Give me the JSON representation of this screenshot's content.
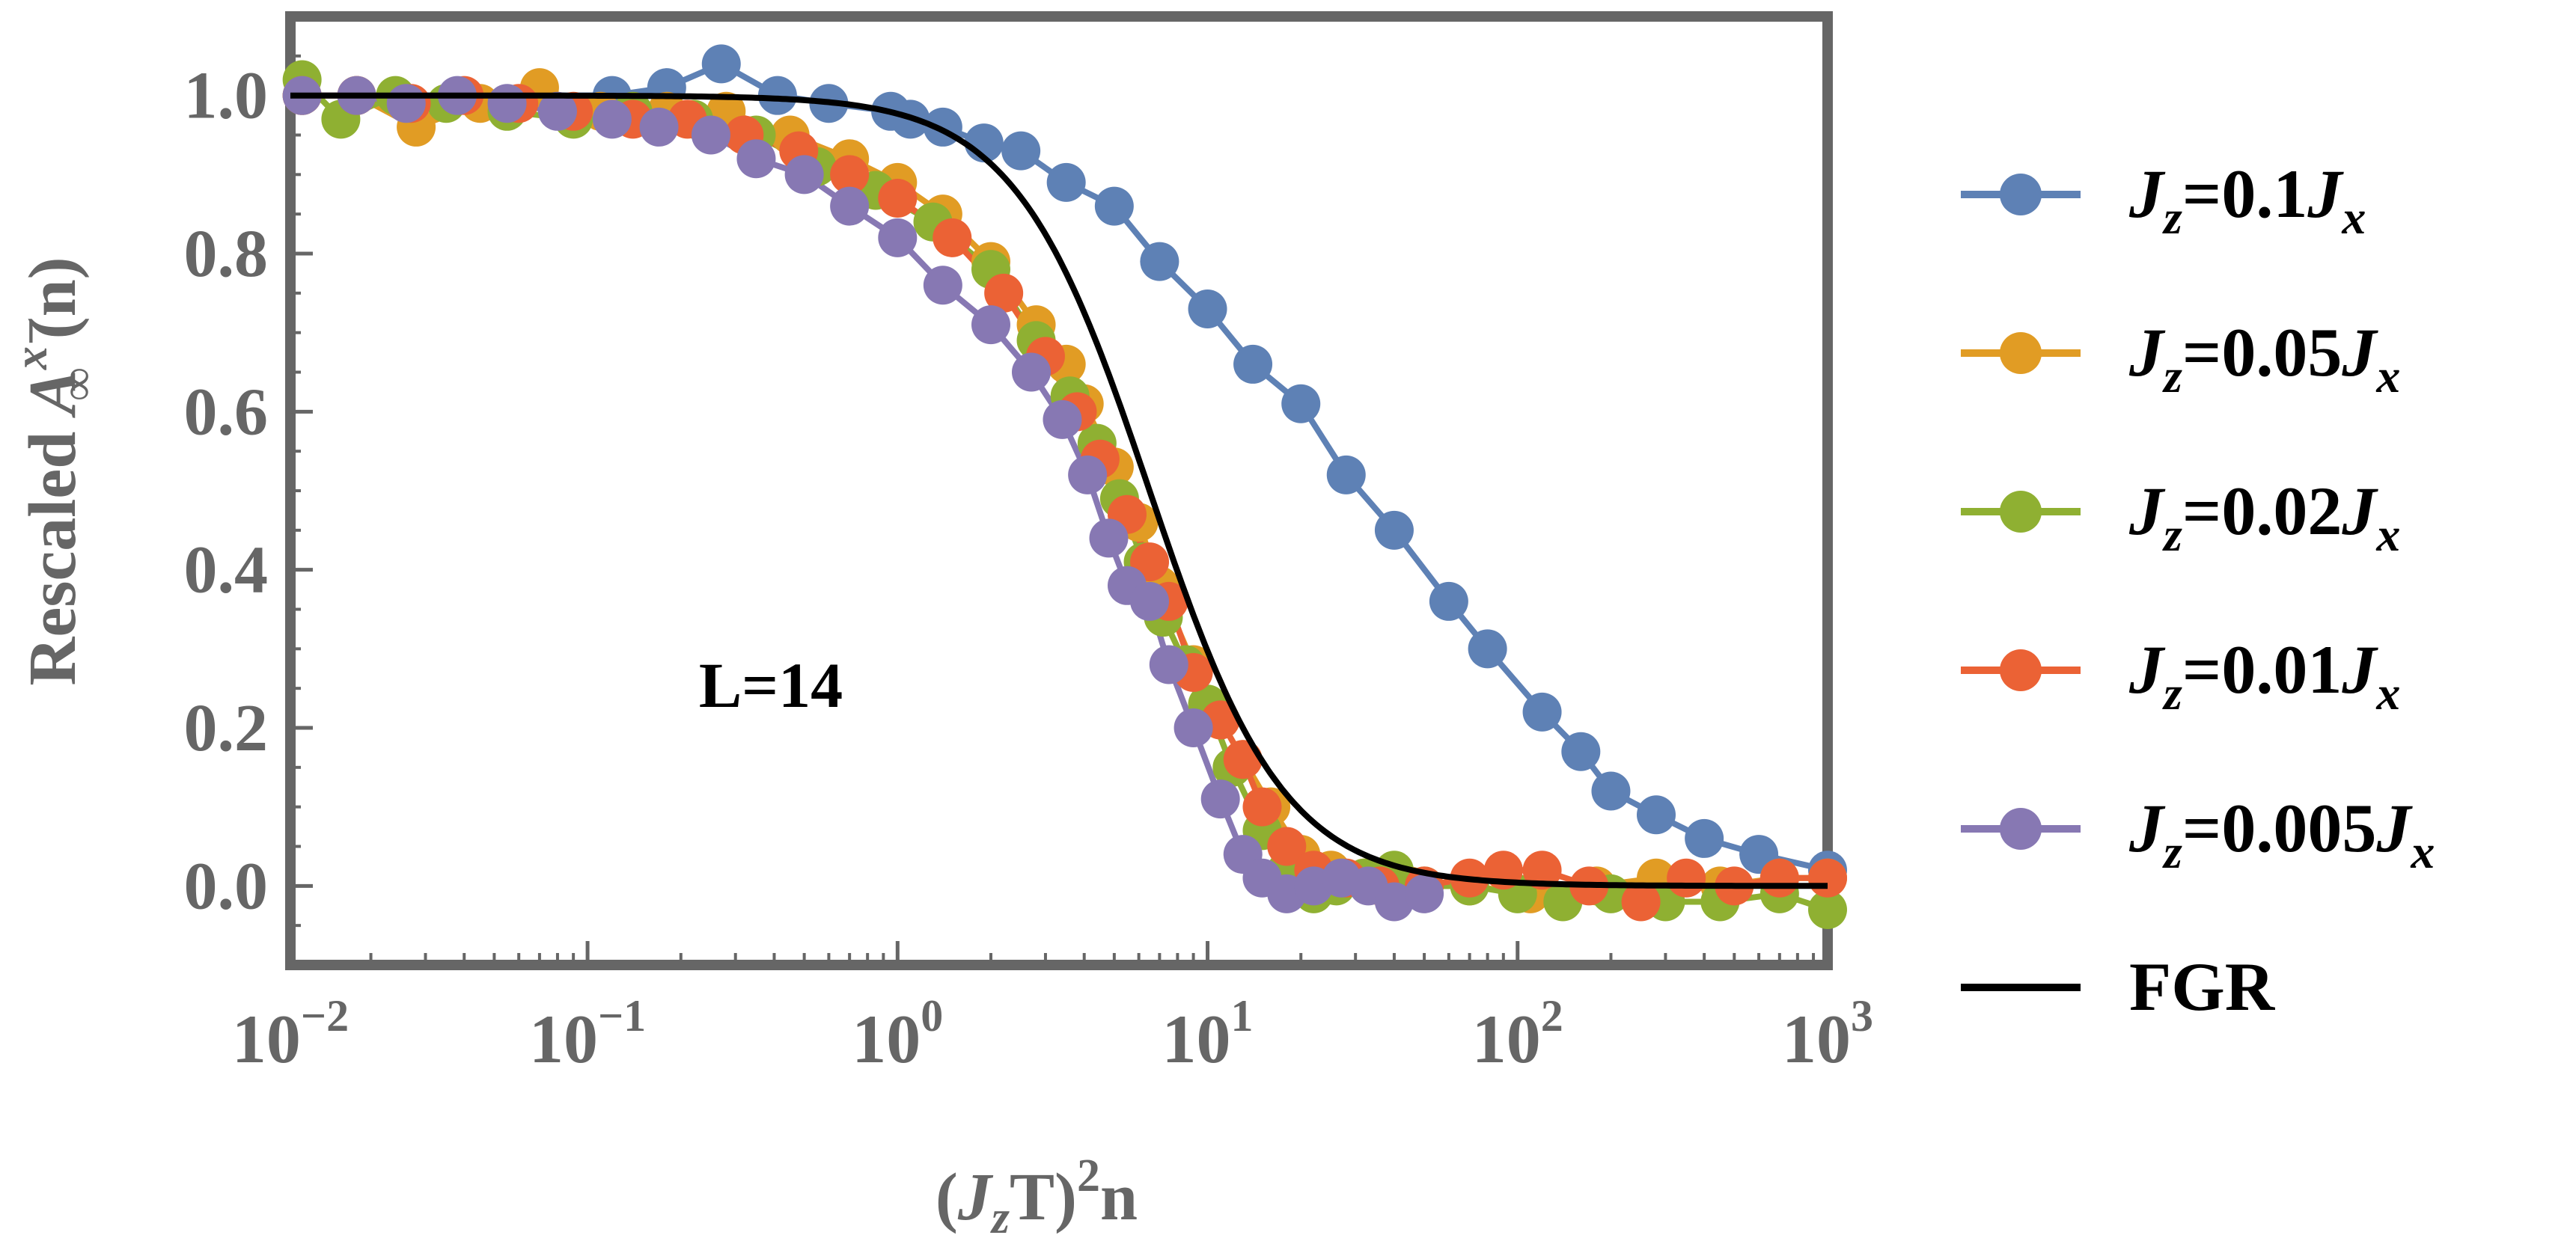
{
  "chart_data": {
    "type": "line",
    "title": "",
    "xlabel_parts": {
      "open": "(",
      "J": "J",
      "z": "z",
      "T": "T)",
      "sq": "2",
      "n": "n"
    },
    "ylabel_parts": {
      "word": "Rescaled ",
      "A": "A",
      "sup": "x−",
      "sub": "∞",
      "n": "(n)"
    },
    "x_scale": "log",
    "xlim": [
      0.011,
      1000
    ],
    "ylim": [
      -0.1,
      1.1
    ],
    "x_ticks": [
      {
        "base": "10",
        "exp": "−2",
        "value": 0.01
      },
      {
        "base": "10",
        "exp": "−1",
        "value": 0.1
      },
      {
        "base": "10",
        "exp": "0",
        "value": 1
      },
      {
        "base": "10",
        "exp": "1",
        "value": 10
      },
      {
        "base": "10",
        "exp": "2",
        "value": 100
      },
      {
        "base": "10",
        "exp": "3",
        "value": 1000
      }
    ],
    "y_ticks": [
      {
        "label": "0.0",
        "value": 0.0
      },
      {
        "label": "0.2",
        "value": 0.2
      },
      {
        "label": "0.4",
        "value": 0.4
      },
      {
        "label": "0.6",
        "value": 0.6
      },
      {
        "label": "0.8",
        "value": 0.8
      },
      {
        "label": "1.0",
        "value": 1.0
      }
    ],
    "grid": false,
    "legend_position": "right",
    "annotation": "L=14",
    "series": [
      {
        "name": "J_z=0.1J_x",
        "legend": {
          "J": "J",
          "z": "z",
          "eq": "=0.1",
          "J2": "J",
          "x": "x"
        },
        "color": "#5E81B5",
        "marker": "circle",
        "x": [
          0.012,
          0.12,
          0.18,
          0.27,
          0.41,
          0.6,
          0.95,
          1.1,
          1.4,
          1.9,
          2.5,
          3.5,
          5.0,
          7.0,
          10.0,
          14.0,
          20.0,
          28.0,
          40.0,
          60.0,
          80.0,
          120.0,
          160.0,
          200.0,
          280.0,
          400.0,
          600.0,
          1000.0
        ],
        "y": [
          1.0,
          1.0,
          1.01,
          1.04,
          1.0,
          0.99,
          0.98,
          0.97,
          0.96,
          0.94,
          0.93,
          0.89,
          0.86,
          0.79,
          0.73,
          0.66,
          0.61,
          0.52,
          0.45,
          0.36,
          0.3,
          0.22,
          0.17,
          0.12,
          0.09,
          0.06,
          0.04,
          0.02
        ]
      },
      {
        "name": "J_z=0.05J_x",
        "legend": {
          "J": "J",
          "z": "z",
          "eq": "=0.05",
          "J2": "J",
          "x": "x"
        },
        "color": "#E19C24",
        "marker": "circle",
        "x": [
          0.012,
          0.018,
          0.028,
          0.045,
          0.07,
          0.11,
          0.18,
          0.28,
          0.45,
          0.7,
          1.0,
          1.4,
          2.0,
          2.8,
          3.5,
          4.0,
          5.0,
          6.0,
          7.0,
          9.0,
          11.0,
          13.0,
          16.0,
          20.0,
          25.0,
          32.0,
          45.0,
          70.0,
          110.0,
          180.0,
          280.0,
          450.0,
          700.0,
          1000.0
        ],
        "y": [
          1.0,
          1.0,
          0.96,
          0.99,
          1.01,
          0.98,
          0.98,
          0.98,
          0.95,
          0.92,
          0.89,
          0.85,
          0.79,
          0.71,
          0.66,
          0.61,
          0.53,
          0.46,
          0.38,
          0.28,
          0.21,
          0.16,
          0.1,
          0.04,
          0.02,
          0.01,
          0.0,
          0.0,
          -0.01,
          0.0,
          0.01,
          0.0,
          0.01,
          0.01
        ]
      },
      {
        "name": "J_z=0.02J_x",
        "legend": {
          "J": "J",
          "z": "z",
          "eq": "=0.02",
          "J2": "J",
          "x": "x"
        },
        "color": "#8FB032",
        "marker": "circle",
        "x": [
          0.012,
          0.016,
          0.024,
          0.035,
          0.055,
          0.09,
          0.14,
          0.22,
          0.35,
          0.55,
          0.85,
          1.3,
          2.0,
          2.8,
          3.6,
          4.4,
          5.2,
          6.2,
          7.2,
          8.5,
          10.0,
          12.0,
          15.0,
          18.0,
          22.0,
          26.0,
          32.0,
          40.0,
          50.0,
          70.0,
          100.0,
          140.0,
          200.0,
          300.0,
          450.0,
          700.0,
          1000.0
        ],
        "y": [
          1.02,
          0.97,
          1.0,
          0.99,
          0.98,
          0.97,
          0.98,
          0.97,
          0.95,
          0.91,
          0.88,
          0.84,
          0.78,
          0.69,
          0.62,
          0.56,
          0.49,
          0.41,
          0.34,
          0.28,
          0.23,
          0.15,
          0.07,
          0.02,
          -0.01,
          0.0,
          0.01,
          0.02,
          0.0,
          0.0,
          -0.01,
          -0.02,
          -0.01,
          -0.02,
          -0.02,
          -0.01,
          -0.03
        ]
      },
      {
        "name": "J_z=0.01J_x",
        "legend": {
          "J": "J",
          "z": "z",
          "eq": "=0.01",
          "J2": "J",
          "x": "x"
        },
        "color": "#EB6235",
        "marker": "circle",
        "x": [
          0.012,
          0.018,
          0.027,
          0.04,
          0.06,
          0.09,
          0.14,
          0.21,
          0.32,
          0.48,
          0.7,
          1.0,
          1.5,
          2.2,
          3.0,
          3.8,
          4.5,
          5.5,
          6.5,
          7.5,
          9.0,
          11.0,
          13.0,
          15.0,
          18.0,
          22.0,
          28.0,
          36.0,
          50.0,
          70.0,
          90.0,
          120.0,
          170.0,
          250.0,
          350.0,
          500.0,
          700.0,
          1000.0
        ],
        "y": [
          1.0,
          1.0,
          0.99,
          1.0,
          0.99,
          0.98,
          0.97,
          0.97,
          0.95,
          0.93,
          0.9,
          0.87,
          0.82,
          0.75,
          0.67,
          0.6,
          0.54,
          0.47,
          0.41,
          0.36,
          0.27,
          0.21,
          0.16,
          0.1,
          0.05,
          0.02,
          0.01,
          0.0,
          0.0,
          0.01,
          0.02,
          0.02,
          0.0,
          -0.02,
          0.01,
          0.0,
          0.01,
          0.01
        ]
      },
      {
        "name": "J_z=0.005J_x",
        "legend": {
          "J": "J",
          "z": "z",
          "eq": "=0.005",
          "J2": "J",
          "x": "x"
        },
        "color": "#8778B3",
        "marker": "circle",
        "x": [
          0.012,
          0.018,
          0.026,
          0.038,
          0.055,
          0.08,
          0.12,
          0.17,
          0.25,
          0.35,
          0.5,
          0.7,
          1.0,
          1.4,
          2.0,
          2.7,
          3.4,
          4.1,
          4.8,
          5.5,
          6.5,
          7.5,
          9.0,
          11.0,
          13.0,
          15.0,
          18.0,
          22.0,
          27.0,
          33.0,
          40.0,
          50.0
        ],
        "y": [
          1.0,
          1.0,
          0.99,
          1.0,
          0.99,
          0.98,
          0.97,
          0.96,
          0.95,
          0.92,
          0.9,
          0.86,
          0.82,
          0.76,
          0.71,
          0.65,
          0.59,
          0.52,
          0.44,
          0.38,
          0.36,
          0.28,
          0.2,
          0.11,
          0.04,
          0.01,
          -0.01,
          0.0,
          0.01,
          0.0,
          -0.02,
          -0.01
        ]
      }
    ],
    "fgr": {
      "name": "FGR",
      "color": "#000000",
      "formula": "1/(1+(x/x0)^a)",
      "x0": 6.5,
      "a": 2.0
    }
  }
}
